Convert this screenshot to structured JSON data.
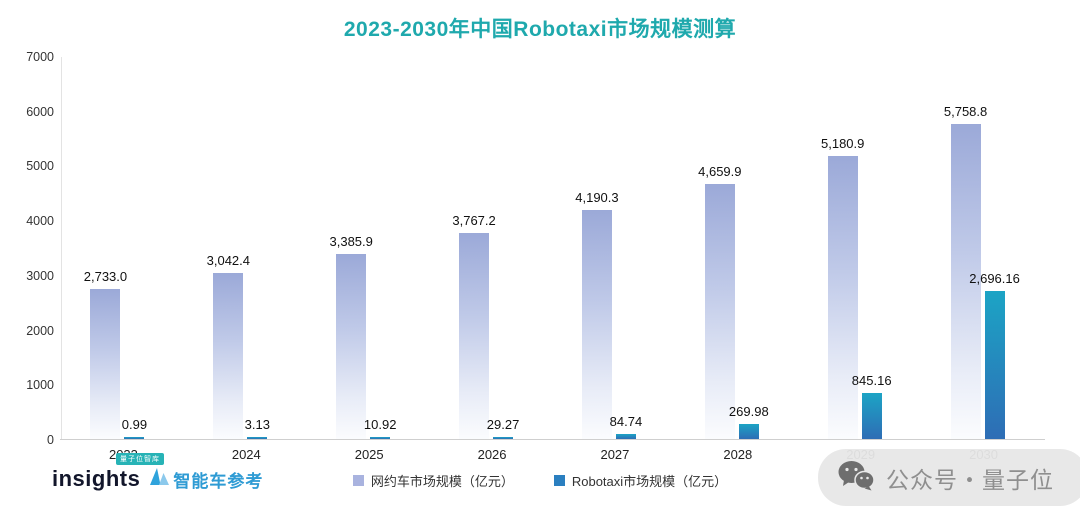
{
  "chart_data": {
    "type": "bar",
    "title": "2023-2030年中国Robotaxi市场规模测算",
    "categories": [
      "2023",
      "2024",
      "2025",
      "2026",
      "2027",
      "2028",
      "2029",
      "2030"
    ],
    "series": [
      {
        "name": "网约车市场规模（亿元）",
        "values": [
          2733.0,
          3042.4,
          3385.9,
          3767.2,
          4190.3,
          4659.9,
          5180.9,
          5758.8
        ],
        "labels": [
          "2,733.0",
          "3,042.4",
          "3,385.9",
          "3,767.2",
          "4,190.3",
          "4,659.9",
          "5,180.9",
          "5,758.8"
        ],
        "legend_color": "#A9B3DF"
      },
      {
        "name": "Robotaxi市场规模（亿元）",
        "values": [
          0.99,
          3.13,
          10.92,
          29.27,
          84.74,
          269.98,
          845.16,
          2696.16
        ],
        "labels": [
          "0.99",
          "3.13",
          "10.92",
          "29.27",
          "84.74",
          "269.98",
          "845.16",
          "2,696.16"
        ],
        "legend_color": "#2A7FC0"
      }
    ],
    "xlabel": "",
    "ylabel": "",
    "ylim": [
      0,
      7000
    ],
    "ytick_step": 1000,
    "grid": false,
    "legend_position": "bottom"
  },
  "colors": {
    "title": "#1FA9AD",
    "bar_main_top": "#9BA9D8",
    "bar_main_bottom": "#FBFCFE",
    "bar_robo_top": "#1CA4C5",
    "bar_robo_bottom": "#2E6DB5"
  },
  "footer": {
    "insights_badge": "量子位智库",
    "insights_text": "insights",
    "smartcar_text": "智能车参考",
    "watermark_text": "公众号・量子位"
  }
}
